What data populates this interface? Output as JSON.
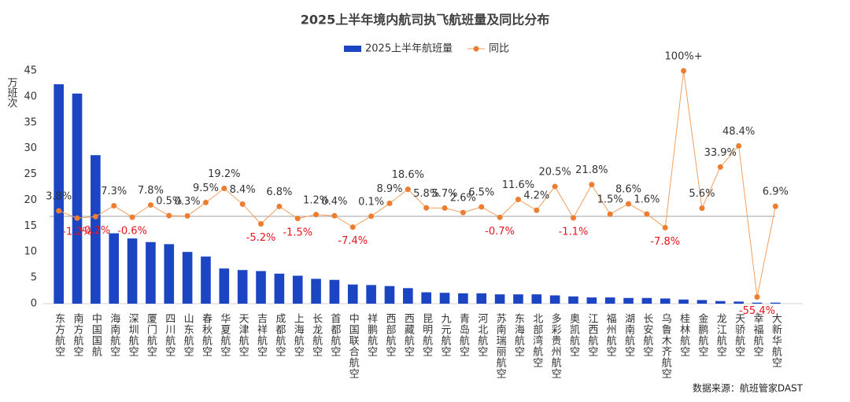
{
  "chart_data": {
    "type": "bar_line",
    "title": "2025上半年境内航司执飞航班量及同比分布",
    "y_axis_label": "万班次",
    "source": "数据来源：航班管家DAST",
    "categories": [
      "东方航空",
      "南方航空",
      "中国国航",
      "海南航空",
      "深圳航空",
      "厦门航空",
      "四川航空",
      "山东航空",
      "春秋航空",
      "华夏航空",
      "天津航空",
      "吉祥航空",
      "成都航空",
      "上海航空",
      "长龙航空",
      "首都航空",
      "中国联合航空",
      "祥鹏航空",
      "西部航空",
      "西藏航空",
      "昆明航空",
      "九元航空",
      "青岛航空",
      "河北航空",
      "苏南瑞丽航空",
      "东海航空",
      "北部湾航空",
      "多彩贵州航空",
      "奥凯航空",
      "江西航空",
      "福州航空",
      "湖南航空",
      "长安航空",
      "乌鲁木齐航空",
      "桂林航空",
      "金鹏航空",
      "龙江航空",
      "天骄航空",
      "幸福航空",
      "大新华航空"
    ],
    "series": [
      {
        "name": "2025上半年航班量",
        "type": "bar",
        "color": "#1c45c4",
        "values": [
          42.4,
          40.6,
          28.7,
          13.6,
          12.6,
          11.9,
          11.5,
          10.0,
          9.1,
          6.8,
          6.5,
          6.3,
          5.8,
          5.4,
          4.8,
          4.6,
          3.7,
          3.6,
          3.4,
          3.0,
          2.2,
          2.1,
          2.0,
          2.0,
          1.8,
          1.8,
          1.8,
          1.6,
          1.4,
          1.2,
          1.2,
          1.1,
          1.1,
          1.0,
          0.8,
          0.7,
          0.5,
          0.4,
          0.2,
          0.2
        ]
      },
      {
        "name": "同比",
        "type": "line",
        "axis": "y2",
        "color": "#f0a060",
        "values": [
          3.8,
          -1.2,
          -0.2,
          7.3,
          -0.6,
          7.8,
          0.5,
          0.3,
          9.5,
          19.2,
          8.4,
          -5.2,
          6.8,
          -1.5,
          1.2,
          0.4,
          -7.4,
          0.1,
          8.9,
          18.6,
          5.8,
          5.7,
          2.6,
          6.5,
          -0.7,
          11.6,
          4.2,
          20.5,
          -1.1,
          21.8,
          1.5,
          8.6,
          1.6,
          -7.8,
          100,
          5.6,
          33.9,
          48.4,
          -55.4,
          6.9
        ],
        "value_labels": [
          "3.8%",
          "-1.2%",
          "-0.2%",
          "7.3%",
          "-0.6%",
          "7.8%",
          "0.5%",
          "0.3%",
          "9.5%",
          "19.2%",
          "8.4%",
          "-5.2%",
          "6.8%",
          "-1.5%",
          "1.2%",
          "0.4%",
          "-7.4%",
          "0.1%",
          "8.9%",
          "18.6%",
          "5.8%",
          "5.7%",
          "2.6%",
          "6.5%",
          "-0.7%",
          "11.6%",
          "4.2%",
          "20.5%",
          "-1.1%",
          "21.8%",
          "1.5%",
          "8.6%",
          "1.6%",
          "-7.8%",
          "100%+",
          "5.6%",
          "33.9%",
          "48.4%",
          "-55.4%",
          "6.9%"
        ],
        "negative_color": "#e8141c"
      }
    ],
    "ylim": [
      0,
      45
    ],
    "yticks": [
      0,
      5,
      10,
      15,
      20,
      25,
      30,
      35,
      40,
      45
    ],
    "y2lim": [
      -60,
      100
    ],
    "legend": "top"
  }
}
